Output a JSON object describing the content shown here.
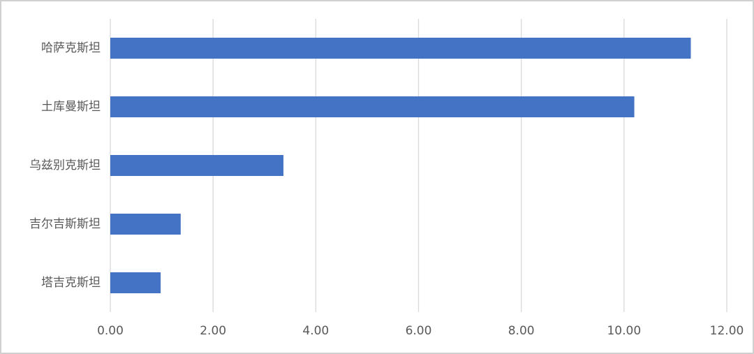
{
  "chart_data": {
    "type": "bar",
    "orientation": "horizontal",
    "categories": [
      "哈萨克斯坦",
      "土库曼斯坦",
      "乌兹别克斯坦",
      "吉尔吉斯斯坦",
      "塔吉克斯坦"
    ],
    "values": [
      11.3,
      10.2,
      3.37,
      1.37,
      0.98
    ],
    "color": "#4472c4",
    "xlim": [
      0,
      12
    ],
    "xticks": [
      {
        "value": 0,
        "label": "0.00"
      },
      {
        "value": 2,
        "label": "2.00"
      },
      {
        "value": 4,
        "label": "4.00"
      },
      {
        "value": 6,
        "label": "6.00"
      },
      {
        "value": 8,
        "label": "8.00"
      },
      {
        "value": 10,
        "label": "10.00"
      },
      {
        "value": 12,
        "label": "12.00"
      }
    ],
    "grid": true
  }
}
